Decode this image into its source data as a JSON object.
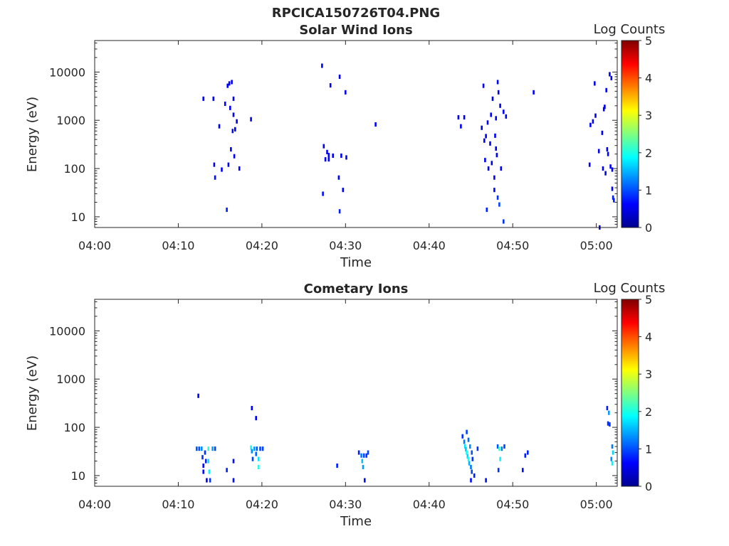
{
  "figure": {
    "title": "RPCICA150726T04.PNG"
  },
  "panels": [
    {
      "title": "Solar Wind Ions",
      "ylabel": "Energy (eV)",
      "xlabel": "Time",
      "colorbar_label": "Log Counts"
    },
    {
      "title": "Cometary Ions",
      "ylabel": "Energy (eV)",
      "xlabel": "Time",
      "colorbar_label": "Log Counts"
    }
  ],
  "chart_data": [
    {
      "type": "heatmap",
      "title": "Solar Wind Ions",
      "xlabel": "Time",
      "ylabel": "Energy (eV)",
      "x_ticks": [
        "04:00",
        "04:10",
        "04:20",
        "04:30",
        "04:40",
        "04:50",
        "05:00"
      ],
      "x_range_minutes": [
        0,
        62.5
      ],
      "y_scale": "log",
      "y_ticks": [
        10,
        100,
        1000,
        10000
      ],
      "y_range": [
        6,
        45000
      ],
      "colorbar": {
        "label": "Log Counts",
        "range": [
          0,
          5
        ],
        "ticks": [
          0,
          1,
          2,
          3,
          4,
          5
        ],
        "colormap": "jet"
      },
      "points": [
        {
          "t": 13.0,
          "e": 2800,
          "v": 0.1
        },
        {
          "t": 14.2,
          "e": 2800,
          "v": 0.1
        },
        {
          "t": 14.3,
          "e": 120,
          "v": 0.1
        },
        {
          "t": 14.4,
          "e": 65,
          "v": 0.2
        },
        {
          "t": 14.9,
          "e": 750,
          "v": 0.1
        },
        {
          "t": 15.2,
          "e": 95,
          "v": 0.1
        },
        {
          "t": 15.6,
          "e": 2200,
          "v": 0.1
        },
        {
          "t": 15.8,
          "e": 14,
          "v": 0.3
        },
        {
          "t": 15.9,
          "e": 5200,
          "v": 0.1
        },
        {
          "t": 16.0,
          "e": 120,
          "v": 0.1
        },
        {
          "t": 16.1,
          "e": 5800,
          "v": 0.1
        },
        {
          "t": 16.2,
          "e": 1800,
          "v": 0.1
        },
        {
          "t": 16.3,
          "e": 250,
          "v": 0.1
        },
        {
          "t": 16.4,
          "e": 6200,
          "v": 0.1
        },
        {
          "t": 16.5,
          "e": 600,
          "v": 0.2
        },
        {
          "t": 16.6,
          "e": 2800,
          "v": 0.1
        },
        {
          "t": 16.6,
          "e": 1300,
          "v": 0.1
        },
        {
          "t": 16.7,
          "e": 180,
          "v": 0.1
        },
        {
          "t": 16.8,
          "e": 650,
          "v": 0.1
        },
        {
          "t": 17.0,
          "e": 950,
          "v": 0.1
        },
        {
          "t": 17.3,
          "e": 100,
          "v": 0.1
        },
        {
          "t": 18.7,
          "e": 1050,
          "v": 0.1
        },
        {
          "t": 27.2,
          "e": 13500,
          "v": 0.1
        },
        {
          "t": 27.3,
          "e": 30,
          "v": 0.2
        },
        {
          "t": 27.4,
          "e": 290,
          "v": 0.1
        },
        {
          "t": 27.6,
          "e": 155,
          "v": 0.1
        },
        {
          "t": 27.8,
          "e": 220,
          "v": 0.1
        },
        {
          "t": 28.0,
          "e": 190,
          "v": 0.1
        },
        {
          "t": 28.0,
          "e": 155,
          "v": 0.1
        },
        {
          "t": 28.2,
          "e": 5300,
          "v": 0.1
        },
        {
          "t": 28.5,
          "e": 185,
          "v": 0.1
        },
        {
          "t": 29.2,
          "e": 65,
          "v": 0.1
        },
        {
          "t": 29.3,
          "e": 8000,
          "v": 0.1
        },
        {
          "t": 29.3,
          "e": 13,
          "v": 0.3
        },
        {
          "t": 29.5,
          "e": 185,
          "v": 0.1
        },
        {
          "t": 29.7,
          "e": 36,
          "v": 0.1
        },
        {
          "t": 30.0,
          "e": 3800,
          "v": 0.1
        },
        {
          "t": 30.1,
          "e": 170,
          "v": 0.1
        },
        {
          "t": 33.6,
          "e": 820,
          "v": 0.1
        },
        {
          "t": 43.5,
          "e": 1150,
          "v": 0.1
        },
        {
          "t": 43.8,
          "e": 750,
          "v": 0.1
        },
        {
          "t": 44.2,
          "e": 1150,
          "v": 0.1
        },
        {
          "t": 46.3,
          "e": 700,
          "v": 0.1
        },
        {
          "t": 46.5,
          "e": 5200,
          "v": 0.1
        },
        {
          "t": 46.6,
          "e": 380,
          "v": 0.1
        },
        {
          "t": 46.7,
          "e": 150,
          "v": 0.1
        },
        {
          "t": 46.8,
          "e": 470,
          "v": 0.1
        },
        {
          "t": 46.9,
          "e": 14,
          "v": 0.3
        },
        {
          "t": 47.0,
          "e": 900,
          "v": 0.1
        },
        {
          "t": 47.1,
          "e": 100,
          "v": 0.1
        },
        {
          "t": 47.3,
          "e": 330,
          "v": 0.1
        },
        {
          "t": 47.4,
          "e": 1300,
          "v": 0.1
        },
        {
          "t": 47.5,
          "e": 130,
          "v": 0.1
        },
        {
          "t": 47.6,
          "e": 2800,
          "v": 0.1
        },
        {
          "t": 47.8,
          "e": 65,
          "v": 0.1
        },
        {
          "t": 47.8,
          "e": 36,
          "v": 0.1
        },
        {
          "t": 47.9,
          "e": 480,
          "v": 0.1
        },
        {
          "t": 48.0,
          "e": 1100,
          "v": 0.1
        },
        {
          "t": 48.0,
          "e": 260,
          "v": 0.1
        },
        {
          "t": 48.1,
          "e": 190,
          "v": 0.1
        },
        {
          "t": 48.2,
          "e": 6200,
          "v": 0.1
        },
        {
          "t": 48.2,
          "e": 25,
          "v": 0.4
        },
        {
          "t": 48.3,
          "e": 3800,
          "v": 0.1
        },
        {
          "t": 48.4,
          "e": 18,
          "v": 0.5
        },
        {
          "t": 48.5,
          "e": 2000,
          "v": 0.1
        },
        {
          "t": 48.6,
          "e": 100,
          "v": 0.1
        },
        {
          "t": 48.9,
          "e": 8,
          "v": 0.4
        },
        {
          "t": 48.9,
          "e": 1500,
          "v": 0.1
        },
        {
          "t": 49.2,
          "e": 1200,
          "v": 0.1
        },
        {
          "t": 52.5,
          "e": 3800,
          "v": 0.1
        },
        {
          "t": 59.2,
          "e": 120,
          "v": 0.1
        },
        {
          "t": 59.3,
          "e": 800,
          "v": 0.1
        },
        {
          "t": 59.6,
          "e": 950,
          "v": 0.1
        },
        {
          "t": 59.8,
          "e": 5800,
          "v": 0.1
        },
        {
          "t": 59.9,
          "e": 1250,
          "v": 0.1
        },
        {
          "t": 60.3,
          "e": 230,
          "v": 0.1
        },
        {
          "t": 60.4,
          "e": 6,
          "v": 0.1
        },
        {
          "t": 60.7,
          "e": 550,
          "v": 0.1
        },
        {
          "t": 60.8,
          "e": 100,
          "v": 0.1
        },
        {
          "t": 60.9,
          "e": 1700,
          "v": 0.1
        },
        {
          "t": 61.0,
          "e": 1900,
          "v": 0.1
        },
        {
          "t": 61.1,
          "e": 80,
          "v": 0.1
        },
        {
          "t": 61.2,
          "e": 4200,
          "v": 0.1
        },
        {
          "t": 61.3,
          "e": 250,
          "v": 0.1
        },
        {
          "t": 61.4,
          "e": 200,
          "v": 0.1
        },
        {
          "t": 61.6,
          "e": 9000,
          "v": 0.1
        },
        {
          "t": 61.7,
          "e": 110,
          "v": 0.1
        },
        {
          "t": 61.8,
          "e": 7500,
          "v": 0.1
        },
        {
          "t": 61.9,
          "e": 95,
          "v": 0.1
        },
        {
          "t": 61.9,
          "e": 38,
          "v": 0.1
        },
        {
          "t": 62.0,
          "e": 25,
          "v": 0.3
        },
        {
          "t": 62.1,
          "e": 22,
          "v": 0.3
        }
      ]
    },
    {
      "type": "heatmap",
      "title": "Cometary Ions",
      "xlabel": "Time",
      "ylabel": "Energy (eV)",
      "x_ticks": [
        "04:00",
        "04:10",
        "04:20",
        "04:30",
        "04:40",
        "04:50",
        "05:00"
      ],
      "x_range_minutes": [
        0,
        62.5
      ],
      "y_scale": "log",
      "y_ticks": [
        10,
        100,
        1000,
        10000
      ],
      "y_range": [
        6,
        45000
      ],
      "colorbar": {
        "label": "Log Counts",
        "range": [
          0,
          5
        ],
        "ticks": [
          0,
          1,
          2,
          3,
          4,
          5
        ],
        "colormap": "jet"
      },
      "points": [
        {
          "t": 12.4,
          "e": 450,
          "v": 0.1
        },
        {
          "t": 12.2,
          "e": 36,
          "v": 0.6
        },
        {
          "t": 12.5,
          "e": 36,
          "v": 0.6
        },
        {
          "t": 12.8,
          "e": 36,
          "v": 0.9
        },
        {
          "t": 12.9,
          "e": 24,
          "v": 0.4
        },
        {
          "t": 13.0,
          "e": 16,
          "v": 0.2
        },
        {
          "t": 13.0,
          "e": 12,
          "v": 0.2
        },
        {
          "t": 13.2,
          "e": 30,
          "v": 0.4
        },
        {
          "t": 13.3,
          "e": 20,
          "v": 0.3
        },
        {
          "t": 13.4,
          "e": 8,
          "v": 0.1
        },
        {
          "t": 13.6,
          "e": 36,
          "v": 1.8
        },
        {
          "t": 13.6,
          "e": 20,
          "v": 1.4
        },
        {
          "t": 13.7,
          "e": 12,
          "v": 1.5
        },
        {
          "t": 13.8,
          "e": 8,
          "v": 0.4
        },
        {
          "t": 14.1,
          "e": 36,
          "v": 1.0
        },
        {
          "t": 14.4,
          "e": 36,
          "v": 0.5
        },
        {
          "t": 15.8,
          "e": 13,
          "v": 0.3
        },
        {
          "t": 16.6,
          "e": 20,
          "v": 0.2
        },
        {
          "t": 16.6,
          "e": 8,
          "v": 0.2
        },
        {
          "t": 18.8,
          "e": 250,
          "v": 0.1
        },
        {
          "t": 19.3,
          "e": 155,
          "v": 0.1
        },
        {
          "t": 18.7,
          "e": 38,
          "v": 1.6
        },
        {
          "t": 18.8,
          "e": 32,
          "v": 0.9
        },
        {
          "t": 18.9,
          "e": 22,
          "v": 0.5
        },
        {
          "t": 19.1,
          "e": 36,
          "v": 1.0
        },
        {
          "t": 19.3,
          "e": 28,
          "v": 0.7
        },
        {
          "t": 19.4,
          "e": 36,
          "v": 0.6
        },
        {
          "t": 19.6,
          "e": 22,
          "v": 1.4
        },
        {
          "t": 19.6,
          "e": 15,
          "v": 1.7
        },
        {
          "t": 19.8,
          "e": 36,
          "v": 0.5
        },
        {
          "t": 20.1,
          "e": 36,
          "v": 0.5
        },
        {
          "t": 29.0,
          "e": 16,
          "v": 0.3
        },
        {
          "t": 31.6,
          "e": 30,
          "v": 0.3
        },
        {
          "t": 31.9,
          "e": 26,
          "v": 0.8
        },
        {
          "t": 32.0,
          "e": 20,
          "v": 1.2
        },
        {
          "t": 32.1,
          "e": 15,
          "v": 1.0
        },
        {
          "t": 32.2,
          "e": 26,
          "v": 0.5
        },
        {
          "t": 32.3,
          "e": 8,
          "v": 0.2
        },
        {
          "t": 32.5,
          "e": 26,
          "v": 0.4
        },
        {
          "t": 32.7,
          "e": 30,
          "v": 0.5
        },
        {
          "t": 44.0,
          "e": 65,
          "v": 0.4
        },
        {
          "t": 44.2,
          "e": 50,
          "v": 0.8
        },
        {
          "t": 44.3,
          "e": 40,
          "v": 1.4
        },
        {
          "t": 44.4,
          "e": 35,
          "v": 1.2
        },
        {
          "t": 44.5,
          "e": 80,
          "v": 0.5
        },
        {
          "t": 44.5,
          "e": 30,
          "v": 1.6
        },
        {
          "t": 44.6,
          "e": 25,
          "v": 1.3
        },
        {
          "t": 44.7,
          "e": 55,
          "v": 0.7
        },
        {
          "t": 44.7,
          "e": 22,
          "v": 1.7
        },
        {
          "t": 44.8,
          "e": 18,
          "v": 1.1
        },
        {
          "t": 44.9,
          "e": 40,
          "v": 0.9
        },
        {
          "t": 45.0,
          "e": 15,
          "v": 0.8
        },
        {
          "t": 45.0,
          "e": 8,
          "v": 0.2
        },
        {
          "t": 45.1,
          "e": 30,
          "v": 0.6
        },
        {
          "t": 45.1,
          "e": 12,
          "v": 0.5
        },
        {
          "t": 45.2,
          "e": 22,
          "v": 0.4
        },
        {
          "t": 45.4,
          "e": 10,
          "v": 0.3
        },
        {
          "t": 45.8,
          "e": 36,
          "v": 0.4
        },
        {
          "t": 46.8,
          "e": 8,
          "v": 0.2
        },
        {
          "t": 48.2,
          "e": 40,
          "v": 0.6
        },
        {
          "t": 48.4,
          "e": 36,
          "v": 1.9
        },
        {
          "t": 48.5,
          "e": 22,
          "v": 1.5
        },
        {
          "t": 48.3,
          "e": 13,
          "v": 0.4
        },
        {
          "t": 48.7,
          "e": 36,
          "v": 0.8
        },
        {
          "t": 49.0,
          "e": 40,
          "v": 0.5
        },
        {
          "t": 51.2,
          "e": 13,
          "v": 0.2
        },
        {
          "t": 51.5,
          "e": 26,
          "v": 0.3
        },
        {
          "t": 51.8,
          "e": 30,
          "v": 0.3
        },
        {
          "t": 61.3,
          "e": 250,
          "v": 0.3
        },
        {
          "t": 61.5,
          "e": 200,
          "v": 1.0
        },
        {
          "t": 61.4,
          "e": 120,
          "v": 0.4
        },
        {
          "t": 61.6,
          "e": 115,
          "v": 0.4
        },
        {
          "t": 61.9,
          "e": 40,
          "v": 0.8
        },
        {
          "t": 62.0,
          "e": 30,
          "v": 1.3
        },
        {
          "t": 61.8,
          "e": 22,
          "v": 0.9
        },
        {
          "t": 61.9,
          "e": 18,
          "v": 1.5
        }
      ]
    }
  ]
}
